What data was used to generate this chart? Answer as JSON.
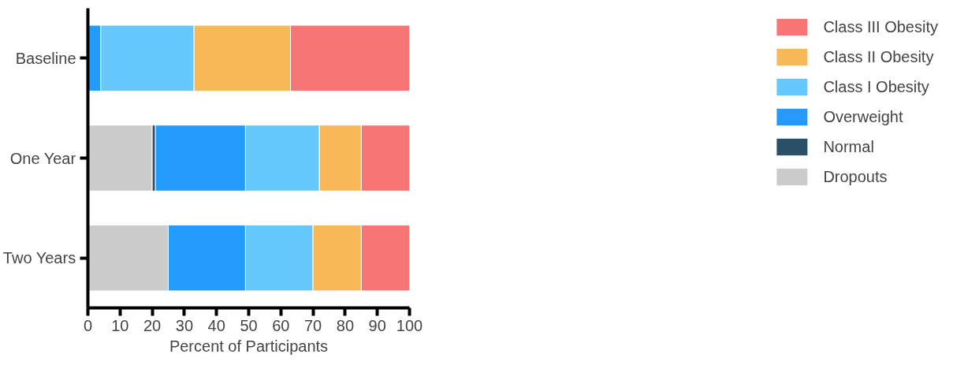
{
  "chart_data": {
    "type": "bar",
    "orientation": "horizontal",
    "stacked": true,
    "xlabel": "Percent of Participants",
    "categories": [
      "Baseline",
      "One Year",
      "Two Years"
    ],
    "series": [
      {
        "name": "Dropouts",
        "color": "#cccbcc",
        "values": [
          0,
          20,
          25
        ]
      },
      {
        "name": "Normal",
        "color": "#2b4f66",
        "values": [
          0,
          1,
          0
        ]
      },
      {
        "name": "Overweight",
        "color": "#229bfc",
        "values": [
          4,
          28,
          24
        ]
      },
      {
        "name": "Class I Obesity",
        "color": "#66c8fa",
        "values": [
          29,
          23,
          21
        ]
      },
      {
        "name": "Class II Obesity",
        "color": "#f8b858",
        "values": [
          30,
          13,
          15
        ]
      },
      {
        "name": "Class III Obesity",
        "color": "#f87575",
        "values": [
          37,
          15,
          15
        ]
      }
    ],
    "xlim": [
      0,
      100
    ],
    "xticks": [
      0,
      10,
      20,
      30,
      40,
      50,
      60,
      70,
      80,
      90,
      100
    ],
    "grid": false,
    "legend": "right"
  }
}
